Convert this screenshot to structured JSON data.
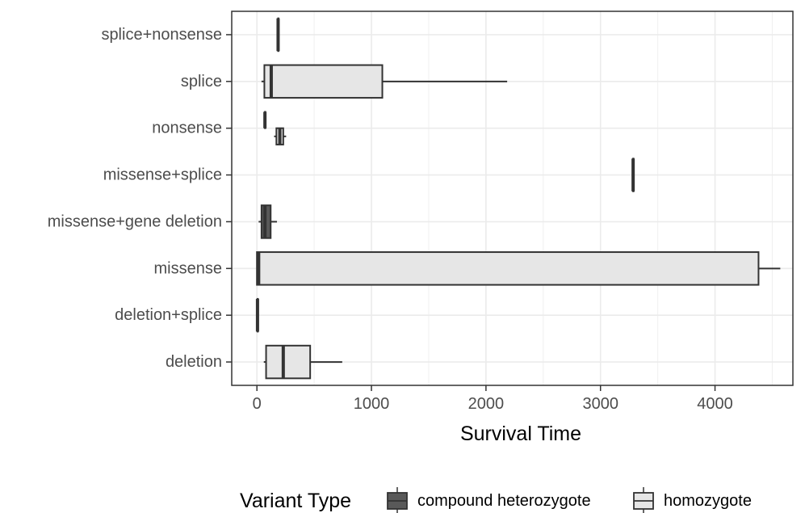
{
  "chart_data": {
    "type": "boxplot",
    "orientation": "horizontal",
    "xlabel": "Survival Time",
    "ylabel": "",
    "xlim": [
      -220,
      4680
    ],
    "xticks": [
      0,
      1000,
      2000,
      3000,
      4000
    ],
    "xtick_labels": [
      "0",
      "1000",
      "2000",
      "3000",
      "4000"
    ],
    "grid": true,
    "categories": [
      "deletion",
      "deletion+splice",
      "missense",
      "missense+gene deletion",
      "missense+splice",
      "nonsense",
      "splice",
      "splice+nonsense"
    ],
    "legend": {
      "title": "Variant Type",
      "position": "bottom",
      "entries": [
        "compound heterozygote",
        "homozygote"
      ]
    },
    "series": [
      {
        "name": "compound heterozygote",
        "color": "#595959",
        "boxes": [
          {
            "category": "deletion+splice",
            "min": 5,
            "q1": 5,
            "median": 5,
            "q3": 5,
            "max": 5
          },
          {
            "category": "missense+gene deletion",
            "min": 15,
            "q1": 40,
            "median": 70,
            "q3": 120,
            "max": 175
          },
          {
            "category": "missense+splice",
            "min": 3285,
            "q1": 3285,
            "median": 3285,
            "q3": 3285,
            "max": 3285
          },
          {
            "category": "nonsense",
            "min": 70,
            "q1": 70,
            "median": 70,
            "q3": 70,
            "max": 70
          },
          {
            "category": "splice+nonsense",
            "min": 185,
            "q1": 185,
            "median": 185,
            "q3": 185,
            "max": 185
          }
        ]
      },
      {
        "name": "homozygote",
        "color": "#e6e6e6",
        "boxes": [
          {
            "category": "deletion",
            "min": 60,
            "q1": 80,
            "median": 230,
            "q3": 465,
            "max": 745
          },
          {
            "category": "missense",
            "min": 0,
            "q1": 0,
            "median": 15,
            "q3": 4380,
            "max": 4570
          },
          {
            "category": "nonsense",
            "min": 150,
            "q1": 170,
            "median": 200,
            "q3": 230,
            "max": 255
          },
          {
            "category": "splice",
            "min": 40,
            "q1": 65,
            "median": 125,
            "q3": 1095,
            "max": 2185
          }
        ]
      }
    ]
  }
}
